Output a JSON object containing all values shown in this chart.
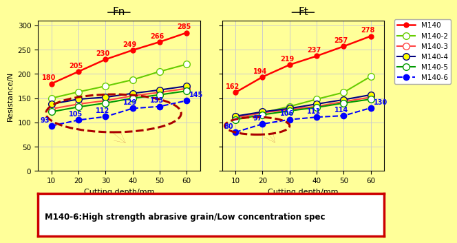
{
  "background_color": "#FFFF99",
  "x_vals": [
    10,
    20,
    30,
    40,
    50,
    60
  ],
  "fn_data": {
    "M140": [
      180,
      205,
      230,
      249,
      266,
      285
    ],
    "M140-2": [
      150,
      163,
      175,
      188,
      205,
      220
    ],
    "M140-3": [
      128,
      138,
      145,
      155,
      162,
      170
    ],
    "M140-4": [
      138,
      148,
      152,
      160,
      167,
      175
    ],
    "M140-5": [
      122,
      132,
      140,
      150,
      157,
      165
    ],
    "M140-6": [
      93,
      105,
      112,
      129,
      133,
      145
    ]
  },
  "ft_data": {
    "M140": [
      162,
      194,
      219,
      237,
      257,
      278
    ],
    "M140-2": [
      110,
      120,
      133,
      148,
      162,
      195
    ],
    "M140-3": [
      110,
      120,
      127,
      133,
      143,
      152
    ],
    "M140-4": [
      113,
      122,
      129,
      138,
      147,
      157
    ],
    "M140-5": [
      106,
      116,
      124,
      131,
      140,
      148
    ],
    "M140-6": [
      80,
      97,
      106,
      111,
      114,
      130
    ]
  },
  "series_styles": {
    "M140": {
      "color": "#FF0000",
      "marker": "o",
      "linestyle": "-",
      "markersize": 5,
      "markerfacecolor": "#FF0000",
      "lw": 1.8
    },
    "M140-2": {
      "color": "#66CC00",
      "marker": "o",
      "linestyle": "-",
      "markersize": 7,
      "markerfacecolor": "white",
      "lw": 1.5
    },
    "M140-3": {
      "color": "#FF4444",
      "marker": "o",
      "linestyle": "-",
      "markersize": 7,
      "markerfacecolor": "white",
      "lw": 1.5
    },
    "M140-4": {
      "color": "#000080",
      "marker": "o",
      "linestyle": "-",
      "markersize": 7,
      "markerfacecolor": "#FFFF00",
      "lw": 1.5
    },
    "M140-5": {
      "color": "#009900",
      "marker": "o",
      "linestyle": "-",
      "markersize": 7,
      "markerfacecolor": "white",
      "lw": 1.5
    },
    "M140-6": {
      "color": "#0000FF",
      "marker": "o",
      "linestyle": "--",
      "markersize": 6,
      "markerfacecolor": "#0000FF",
      "lw": 1.5
    }
  },
  "ylim": [
    0,
    310
  ],
  "yticks": [
    0,
    50,
    100,
    150,
    200,
    250,
    300
  ],
  "xlim": [
    5,
    65
  ],
  "xticks": [
    10,
    20,
    30,
    40,
    50,
    60
  ],
  "ylabel": "Resistance/N",
  "xlabel": "Cutting depth/mm",
  "annotation_text": "M140-6:High strength abrasive grain/Low concentration spec",
  "series_order": [
    "M140",
    "M140-2",
    "M140-3",
    "M140-4",
    "M140-5",
    "M140-6"
  ],
  "fn_title": "Fn",
  "ft_title": "Ft"
}
